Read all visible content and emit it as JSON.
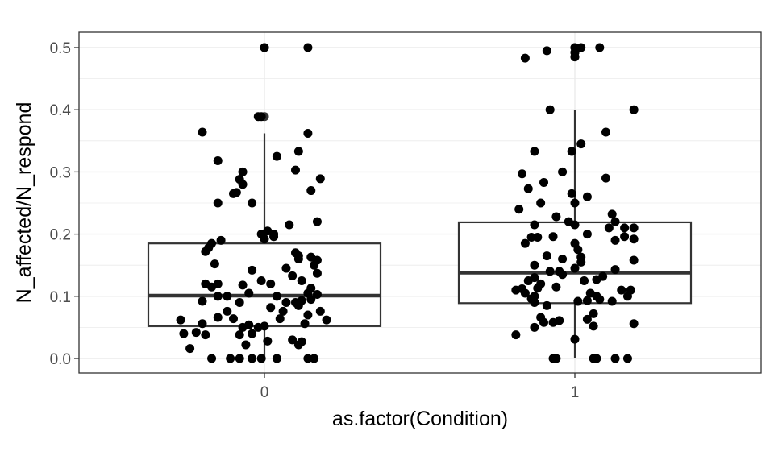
{
  "chart_data": {
    "type": "boxplot",
    "xlabel": "as.factor(Condition)",
    "ylabel": "N_affected/N_respond",
    "categories": [
      "0",
      "1"
    ],
    "ylim": [
      -0.02,
      0.525
    ],
    "yticks": [
      "0.0",
      "0.1",
      "0.2",
      "0.3",
      "0.4",
      "0.5"
    ],
    "grid": true,
    "boxes": [
      {
        "category": "0",
        "lower_whisker": 0.0,
        "q1": 0.052,
        "median": 0.101,
        "q3": 0.185,
        "upper_whisker": 0.362
      },
      {
        "category": "1",
        "lower_whisker": 0.0,
        "q1": 0.089,
        "median": 0.138,
        "q3": 0.219,
        "upper_whisker": 0.4
      }
    ],
    "outliers": [
      {
        "category": "0",
        "y": 0.5
      },
      {
        "category": "0",
        "y": 0.389
      },
      {
        "category": "1",
        "y": 0.5
      },
      {
        "category": "1",
        "y": 0.492
      },
      {
        "category": "1",
        "y": 0.485
      }
    ],
    "points": [
      {
        "category": "0",
        "x_offset": -0.17,
        "y": 0.0
      },
      {
        "category": "0",
        "x_offset": -0.11,
        "y": 0.0
      },
      {
        "category": "0",
        "x_offset": -0.08,
        "y": 0.0
      },
      {
        "category": "0",
        "x_offset": -0.04,
        "y": 0.0
      },
      {
        "category": "0",
        "x_offset": -0.01,
        "y": 0.0
      },
      {
        "category": "0",
        "x_offset": 0.04,
        "y": 0.0
      },
      {
        "category": "0",
        "x_offset": 0.14,
        "y": 0.0
      },
      {
        "category": "0",
        "x_offset": 0.16,
        "y": 0.0
      },
      {
        "category": "0",
        "x_offset": -0.24,
        "y": 0.016
      },
      {
        "category": "0",
        "x_offset": -0.06,
        "y": 0.022
      },
      {
        "category": "0",
        "x_offset": 0.11,
        "y": 0.022
      },
      {
        "category": "0",
        "x_offset": 0.12,
        "y": 0.027
      },
      {
        "category": "0",
        "x_offset": 0.01,
        "y": 0.028
      },
      {
        "category": "0",
        "x_offset": 0.09,
        "y": 0.03
      },
      {
        "category": "0",
        "x_offset": -0.19,
        "y": 0.038
      },
      {
        "category": "0",
        "x_offset": -0.08,
        "y": 0.038
      },
      {
        "category": "0",
        "x_offset": -0.04,
        "y": 0.04
      },
      {
        "category": "0",
        "x_offset": -0.26,
        "y": 0.04
      },
      {
        "category": "0",
        "x_offset": -0.22,
        "y": 0.042
      },
      {
        "category": "0",
        "x_offset": -0.07,
        "y": 0.05
      },
      {
        "category": "0",
        "x_offset": -0.02,
        "y": 0.05
      },
      {
        "category": "0",
        "x_offset": 0.0,
        "y": 0.052
      },
      {
        "category": "0",
        "x_offset": -0.05,
        "y": 0.054
      },
      {
        "category": "0",
        "x_offset": -0.2,
        "y": 0.056
      },
      {
        "category": "0",
        "x_offset": 0.13,
        "y": 0.056
      },
      {
        "category": "0",
        "x_offset": 0.2,
        "y": 0.062
      },
      {
        "category": "0",
        "x_offset": -0.27,
        "y": 0.062
      },
      {
        "category": "0",
        "x_offset": -0.1,
        "y": 0.064
      },
      {
        "category": "0",
        "x_offset": 0.05,
        "y": 0.064
      },
      {
        "category": "0",
        "x_offset": -0.15,
        "y": 0.066
      },
      {
        "category": "0",
        "x_offset": 0.14,
        "y": 0.07
      },
      {
        "category": "0",
        "x_offset": -0.12,
        "y": 0.076
      },
      {
        "category": "0",
        "x_offset": 0.06,
        "y": 0.076
      },
      {
        "category": "0",
        "x_offset": 0.18,
        "y": 0.076
      },
      {
        "category": "0",
        "x_offset": 0.02,
        "y": 0.082
      },
      {
        "category": "0",
        "x_offset": 0.11,
        "y": 0.085
      },
      {
        "category": "0",
        "x_offset": -0.08,
        "y": 0.09
      },
      {
        "category": "0",
        "x_offset": 0.07,
        "y": 0.09
      },
      {
        "category": "0",
        "x_offset": 0.1,
        "y": 0.09
      },
      {
        "category": "0",
        "x_offset": -0.2,
        "y": 0.092
      },
      {
        "category": "0",
        "x_offset": 0.12,
        "y": 0.093
      },
      {
        "category": "0",
        "x_offset": 0.15,
        "y": 0.095
      },
      {
        "category": "0",
        "x_offset": -0.15,
        "y": 0.1
      },
      {
        "category": "0",
        "x_offset": 0.04,
        "y": 0.1
      },
      {
        "category": "0",
        "x_offset": -0.12,
        "y": 0.1
      },
      {
        "category": "0",
        "x_offset": 0.17,
        "y": 0.103
      },
      {
        "category": "0",
        "x_offset": 0.14,
        "y": 0.105
      },
      {
        "category": "0",
        "x_offset": -0.05,
        "y": 0.105
      },
      {
        "category": "0",
        "x_offset": 0.15,
        "y": 0.113
      },
      {
        "category": "0",
        "x_offset": -0.17,
        "y": 0.115
      },
      {
        "category": "0",
        "x_offset": -0.07,
        "y": 0.118
      },
      {
        "category": "0",
        "x_offset": -0.15,
        "y": 0.12
      },
      {
        "category": "0",
        "x_offset": 0.02,
        "y": 0.12
      },
      {
        "category": "0",
        "x_offset": -0.19,
        "y": 0.12
      },
      {
        "category": "0",
        "x_offset": -0.01,
        "y": 0.125
      },
      {
        "category": "0",
        "x_offset": 0.12,
        "y": 0.125
      },
      {
        "category": "0",
        "x_offset": 0.09,
        "y": 0.133
      },
      {
        "category": "0",
        "x_offset": 0.17,
        "y": 0.137
      },
      {
        "category": "0",
        "x_offset": -0.04,
        "y": 0.142
      },
      {
        "category": "0",
        "x_offset": 0.07,
        "y": 0.145
      },
      {
        "category": "0",
        "x_offset": 0.16,
        "y": 0.15
      },
      {
        "category": "0",
        "x_offset": -0.16,
        "y": 0.152
      },
      {
        "category": "0",
        "x_offset": 0.17,
        "y": 0.158
      },
      {
        "category": "0",
        "x_offset": 0.11,
        "y": 0.16
      },
      {
        "category": "0",
        "x_offset": 0.15,
        "y": 0.163
      },
      {
        "category": "0",
        "x_offset": 0.11,
        "y": 0.165
      },
      {
        "category": "0",
        "x_offset": 0.1,
        "y": 0.17
      },
      {
        "category": "0",
        "x_offset": -0.19,
        "y": 0.172
      },
      {
        "category": "0",
        "x_offset": -0.18,
        "y": 0.178
      },
      {
        "category": "0",
        "x_offset": -0.17,
        "y": 0.185
      },
      {
        "category": "0",
        "x_offset": -0.14,
        "y": 0.19
      },
      {
        "category": "0",
        "x_offset": 0.0,
        "y": 0.192
      },
      {
        "category": "0",
        "x_offset": 0.03,
        "y": 0.196
      },
      {
        "category": "0",
        "x_offset": -0.01,
        "y": 0.2
      },
      {
        "category": "0",
        "x_offset": 0.03,
        "y": 0.2
      },
      {
        "category": "0",
        "x_offset": 0.01,
        "y": 0.205
      },
      {
        "category": "0",
        "x_offset": 0.08,
        "y": 0.215
      },
      {
        "category": "0",
        "x_offset": 0.17,
        "y": 0.22
      },
      {
        "category": "0",
        "x_offset": -0.15,
        "y": 0.25
      },
      {
        "category": "0",
        "x_offset": -0.04,
        "y": 0.25
      },
      {
        "category": "0",
        "x_offset": -0.1,
        "y": 0.265
      },
      {
        "category": "0",
        "x_offset": -0.09,
        "y": 0.267
      },
      {
        "category": "0",
        "x_offset": 0.15,
        "y": 0.27
      },
      {
        "category": "0",
        "x_offset": -0.07,
        "y": 0.28
      },
      {
        "category": "0",
        "x_offset": -0.08,
        "y": 0.288
      },
      {
        "category": "0",
        "x_offset": 0.18,
        "y": 0.289
      },
      {
        "category": "0",
        "x_offset": -0.07,
        "y": 0.3
      },
      {
        "category": "0",
        "x_offset": 0.1,
        "y": 0.303
      },
      {
        "category": "0",
        "x_offset": -0.15,
        "y": 0.318
      },
      {
        "category": "0",
        "x_offset": 0.04,
        "y": 0.325
      },
      {
        "category": "0",
        "x_offset": 0.11,
        "y": 0.333
      },
      {
        "category": "0",
        "x_offset": 0.14,
        "y": 0.362
      },
      {
        "category": "0",
        "x_offset": -0.2,
        "y": 0.364
      },
      {
        "category": "0",
        "x_offset": -0.02,
        "y": 0.389
      },
      {
        "category": "0",
        "x_offset": -0.01,
        "y": 0.389
      },
      {
        "category": "0",
        "x_offset": 0.0,
        "y": 0.5
      },
      {
        "category": "0",
        "x_offset": 0.14,
        "y": 0.5
      },
      {
        "category": "1",
        "x_offset": -0.07,
        "y": 0.0
      },
      {
        "category": "1",
        "x_offset": -0.06,
        "y": 0.0
      },
      {
        "category": "1",
        "x_offset": 0.06,
        "y": 0.0
      },
      {
        "category": "1",
        "x_offset": 0.07,
        "y": 0.0
      },
      {
        "category": "1",
        "x_offset": 0.13,
        "y": 0.0
      },
      {
        "category": "1",
        "x_offset": 0.17,
        "y": 0.0
      },
      {
        "category": "1",
        "x_offset": -0.0,
        "y": 0.031
      },
      {
        "category": "1",
        "x_offset": -0.19,
        "y": 0.038
      },
      {
        "category": "1",
        "x_offset": 0.06,
        "y": 0.052
      },
      {
        "category": "1",
        "x_offset": -0.13,
        "y": 0.05
      },
      {
        "category": "1",
        "x_offset": -0.07,
        "y": 0.058
      },
      {
        "category": "1",
        "x_offset": 0.19,
        "y": 0.056
      },
      {
        "category": "1",
        "x_offset": -0.1,
        "y": 0.058
      },
      {
        "category": "1",
        "x_offset": -0.05,
        "y": 0.061
      },
      {
        "category": "1",
        "x_offset": 0.04,
        "y": 0.063
      },
      {
        "category": "1",
        "x_offset": -0.11,
        "y": 0.066
      },
      {
        "category": "1",
        "x_offset": 0.06,
        "y": 0.072
      },
      {
        "category": "1",
        "x_offset": -0.09,
        "y": 0.085
      },
      {
        "category": "1",
        "x_offset": -0.13,
        "y": 0.09
      },
      {
        "category": "1",
        "x_offset": 0.01,
        "y": 0.092
      },
      {
        "category": "1",
        "x_offset": 0.04,
        "y": 0.093
      },
      {
        "category": "1",
        "x_offset": 0.12,
        "y": 0.092
      },
      {
        "category": "1",
        "x_offset": -0.14,
        "y": 0.096
      },
      {
        "category": "1",
        "x_offset": 0.08,
        "y": 0.095
      },
      {
        "category": "1",
        "x_offset": -0.13,
        "y": 0.1
      },
      {
        "category": "1",
        "x_offset": 0.07,
        "y": 0.1
      },
      {
        "category": "1",
        "x_offset": 0.17,
        "y": 0.1
      },
      {
        "category": "1",
        "x_offset": -0.16,
        "y": 0.105
      },
      {
        "category": "1",
        "x_offset": 0.05,
        "y": 0.105
      },
      {
        "category": "1",
        "x_offset": -0.19,
        "y": 0.11
      },
      {
        "category": "1",
        "x_offset": 0.15,
        "y": 0.11
      },
      {
        "category": "1",
        "x_offset": -0.17,
        "y": 0.112
      },
      {
        "category": "1",
        "x_offset": 0.18,
        "y": 0.11
      },
      {
        "category": "1",
        "x_offset": -0.12,
        "y": 0.113
      },
      {
        "category": "1",
        "x_offset": -0.06,
        "y": 0.115
      },
      {
        "category": "1",
        "x_offset": -0.11,
        "y": 0.12
      },
      {
        "category": "1",
        "x_offset": -0.15,
        "y": 0.125
      },
      {
        "category": "1",
        "x_offset": 0.03,
        "y": 0.125
      },
      {
        "category": "1",
        "x_offset": 0.07,
        "y": 0.127
      },
      {
        "category": "1",
        "x_offset": -0.13,
        "y": 0.13
      },
      {
        "category": "1",
        "x_offset": 0.09,
        "y": 0.132
      },
      {
        "category": "1",
        "x_offset": -0.04,
        "y": 0.135
      },
      {
        "category": "1",
        "x_offset": -0.05,
        "y": 0.14
      },
      {
        "category": "1",
        "x_offset": -0.08,
        "y": 0.14
      },
      {
        "category": "1",
        "x_offset": 0.13,
        "y": 0.143
      },
      {
        "category": "1",
        "x_offset": -0.0,
        "y": 0.145
      },
      {
        "category": "1",
        "x_offset": -0.13,
        "y": 0.15
      },
      {
        "category": "1",
        "x_offset": 0.02,
        "y": 0.155
      },
      {
        "category": "1",
        "x_offset": 0.19,
        "y": 0.158
      },
      {
        "category": "1",
        "x_offset": -0.04,
        "y": 0.16
      },
      {
        "category": "1",
        "x_offset": 0.02,
        "y": 0.163
      },
      {
        "category": "1",
        "x_offset": -0.09,
        "y": 0.165
      },
      {
        "category": "1",
        "x_offset": 0.01,
        "y": 0.175
      },
      {
        "category": "1",
        "x_offset": -0.16,
        "y": 0.185
      },
      {
        "category": "1",
        "x_offset": 0.0,
        "y": 0.185
      },
      {
        "category": "1",
        "x_offset": 0.13,
        "y": 0.19
      },
      {
        "category": "1",
        "x_offset": -0.14,
        "y": 0.195
      },
      {
        "category": "1",
        "x_offset": -0.07,
        "y": 0.196
      },
      {
        "category": "1",
        "x_offset": 0.16,
        "y": 0.196
      },
      {
        "category": "1",
        "x_offset": -0.12,
        "y": 0.195
      },
      {
        "category": "1",
        "x_offset": 0.19,
        "y": 0.192
      },
      {
        "category": "1",
        "x_offset": 0.04,
        "y": 0.2
      },
      {
        "category": "1",
        "x_offset": 0.11,
        "y": 0.21
      },
      {
        "category": "1",
        "x_offset": 0.16,
        "y": 0.21
      },
      {
        "category": "1",
        "x_offset": 0.19,
        "y": 0.21
      },
      {
        "category": "1",
        "x_offset": -0.13,
        "y": 0.215
      },
      {
        "category": "1",
        "x_offset": 0.0,
        "y": 0.215
      },
      {
        "category": "1",
        "x_offset": 0.13,
        "y": 0.22
      },
      {
        "category": "1",
        "x_offset": -0.02,
        "y": 0.22
      },
      {
        "category": "1",
        "x_offset": -0.06,
        "y": 0.228
      },
      {
        "category": "1",
        "x_offset": 0.12,
        "y": 0.232
      },
      {
        "category": "1",
        "x_offset": -0.18,
        "y": 0.24
      },
      {
        "category": "1",
        "x_offset": -0.11,
        "y": 0.25
      },
      {
        "category": "1",
        "x_offset": -0.0,
        "y": 0.25
      },
      {
        "category": "1",
        "x_offset": 0.04,
        "y": 0.26
      },
      {
        "category": "1",
        "x_offset": -0.01,
        "y": 0.265
      },
      {
        "category": "1",
        "x_offset": -0.15,
        "y": 0.273
      },
      {
        "category": "1",
        "x_offset": -0.1,
        "y": 0.283
      },
      {
        "category": "1",
        "x_offset": 0.1,
        "y": 0.29
      },
      {
        "category": "1",
        "x_offset": -0.17,
        "y": 0.297
      },
      {
        "category": "1",
        "x_offset": -0.04,
        "y": 0.3
      },
      {
        "category": "1",
        "x_offset": -0.13,
        "y": 0.333
      },
      {
        "category": "1",
        "x_offset": -0.01,
        "y": 0.333
      },
      {
        "category": "1",
        "x_offset": 0.02,
        "y": 0.345
      },
      {
        "category": "1",
        "x_offset": 0.1,
        "y": 0.364
      },
      {
        "category": "1",
        "x_offset": -0.08,
        "y": 0.4
      },
      {
        "category": "1",
        "x_offset": 0.19,
        "y": 0.4
      },
      {
        "category": "1",
        "x_offset": -0.16,
        "y": 0.483
      },
      {
        "category": "1",
        "x_offset": -0.09,
        "y": 0.495
      },
      {
        "category": "1",
        "x_offset": 0.0,
        "y": 0.5
      },
      {
        "category": "1",
        "x_offset": 0.02,
        "y": 0.5
      },
      {
        "category": "1",
        "x_offset": 0.08,
        "y": 0.5
      },
      {
        "category": "1",
        "x_offset": 0.0,
        "y": 0.492
      },
      {
        "category": "1",
        "x_offset": 0.0,
        "y": 0.485
      }
    ],
    "colors": {
      "panel_background": "#ffffff",
      "grid": "#ebebeb",
      "box_stroke": "#333333",
      "points": "#000000",
      "outlier": "#333333",
      "text": "#4d4d4d"
    }
  }
}
